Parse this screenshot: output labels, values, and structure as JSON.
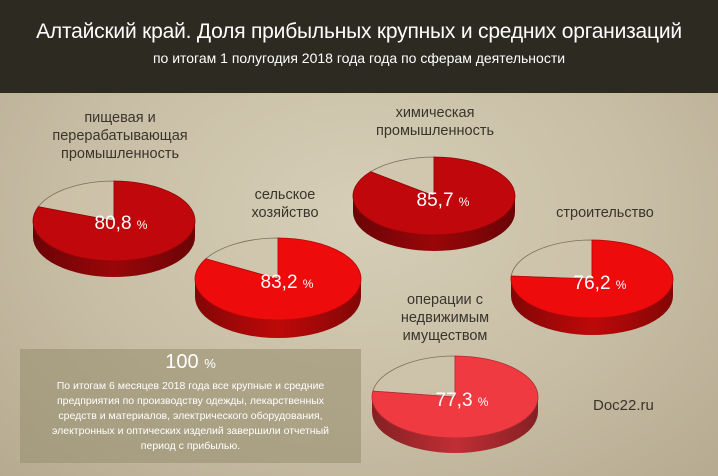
{
  "header": {
    "title": "Алтайский край. Доля прибыльных крупных и средних организаций",
    "subtitle": "по итогам 1 полугодия 2018 года года по сферам деятельности"
  },
  "chart_data": {
    "type": "pie",
    "title": "Алтайский край. Доля прибыльных крупных и средних организаций",
    "subtitle": "по итогам 1 полугодия 2018 года года по сферам деятельности",
    "unit": "%",
    "series": [
      {
        "label": "пищевая и перерабатывающая промышленность",
        "value": 80.8,
        "display": "80,8"
      },
      {
        "label": "сельское хозяйство",
        "value": 83.2,
        "display": "83,2"
      },
      {
        "label": "химическая промышленность",
        "value": 85.7,
        "display": "85,7"
      },
      {
        "label": "строительство",
        "value": 76.2,
        "display": "76,2"
      },
      {
        "label": "операции с недвижимым имуществом",
        "value": 77.3,
        "display": "77,3"
      }
    ],
    "colors": {
      "dark_red": "#c0070b",
      "bright_red": "#ee0b0b",
      "light_red": "#f03a41"
    }
  },
  "labels": {
    "food": [
      "пищевая и",
      "перерабатывающая",
      "промышленность"
    ],
    "agri": [
      "сельское",
      "хозяйство"
    ],
    "chem": [
      "химическая",
      "промышленность"
    ],
    "constr": [
      "строительство"
    ],
    "realty": [
      "операции с",
      "недвижимым",
      "имуществом"
    ]
  },
  "note": {
    "percent": "100",
    "percent_sign": "%",
    "lines": [
      "По итогам 6 месяцев 2018 года все крупные и средние",
      "предприятия по производству одежды, лекарственных",
      "средств и материалов, электрического оборудования,",
      "электронных и оптических изделий завершили отчетный",
      "период с прибылью."
    ]
  },
  "source": "Doc22.ru"
}
